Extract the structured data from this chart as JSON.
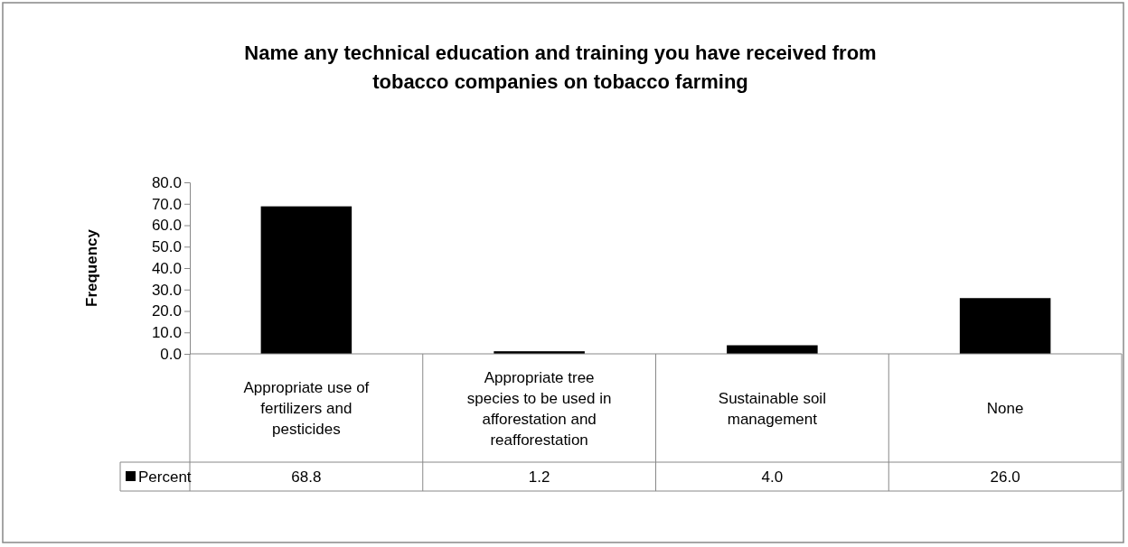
{
  "chart_data": {
    "type": "bar",
    "title": "Name any technical education and training you have received from tobacco companies on tobacco farming",
    "ylabel": "Frequency",
    "categories": [
      "Appropriate use of fertilizers and pesticides",
      "Appropriate tree species to be used in afforestation and reafforestation",
      "Sustainable soil management",
      "None"
    ],
    "series": [
      {
        "name": "Percent",
        "color": "#000000",
        "values": [
          68.8,
          1.2,
          4.0,
          26.0
        ],
        "value_labels": [
          "68.8",
          "1.2",
          "4.0",
          "26.0"
        ]
      }
    ],
    "ylim": [
      0,
      80
    ],
    "yticks": [
      {
        "value": 0,
        "label": "0.0"
      },
      {
        "value": 10,
        "label": "10.0"
      },
      {
        "value": 20,
        "label": "20.0"
      },
      {
        "value": 30,
        "label": "30.0"
      },
      {
        "value": 40,
        "label": "40.0"
      },
      {
        "value": 50,
        "label": "50.0"
      },
      {
        "value": 60,
        "label": "60.0"
      },
      {
        "value": 70,
        "label": "70.0"
      },
      {
        "value": 80,
        "label": "80.0"
      }
    ],
    "legend": "bottom left",
    "grid": false
  }
}
